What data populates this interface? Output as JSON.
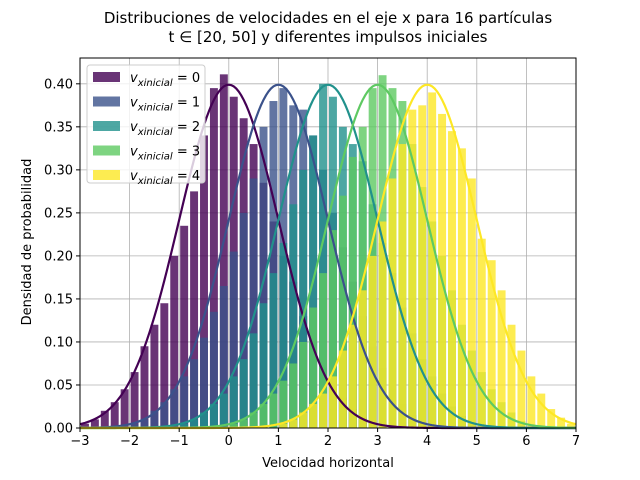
{
  "chart_data": {
    "type": "bar",
    "title_line1": "Distribuciones de velocidades en el eje x para 16 partículas",
    "title_line2": "t ∈ [20, 50] y diferentes impulsos iniciales",
    "xlabel": "Velocidad horizontal",
    "ylabel": "Densidad de probabilidad",
    "xlim": [
      -3,
      7
    ],
    "ylim": [
      0,
      0.43
    ],
    "xticks": [
      -3,
      -2,
      -1,
      0,
      1,
      2,
      3,
      4,
      5,
      6,
      7
    ],
    "xtick_labels": [
      "−3",
      "−2",
      "−1",
      "0",
      "1",
      "2",
      "3",
      "4",
      "5",
      "6",
      "7"
    ],
    "yticks": [
      0,
      0.05,
      0.1,
      0.15,
      0.2,
      0.25,
      0.3,
      0.35,
      0.4
    ],
    "ytick_labels": [
      "0.00",
      "0.05",
      "0.10",
      "0.15",
      "0.20",
      "0.25",
      "0.30",
      "0.35",
      "0.40"
    ],
    "grid": true,
    "legend_position": "top-left",
    "bin_width": 0.2,
    "curve_sigma": 1.0,
    "series": [
      {
        "name": "v_xinicial = 0",
        "legend_var": "v",
        "legend_sub": "xinicial",
        "legend_rest": " = 0",
        "mean": 0,
        "color": "#440154",
        "bin_centers": [
          -2.9,
          -2.7,
          -2.5,
          -2.3,
          -2.1,
          -1.9,
          -1.7,
          -1.5,
          -1.3,
          -1.1,
          -0.9,
          -0.7,
          -0.5,
          -0.3,
          -0.1,
          0.1,
          0.3,
          0.5,
          0.7,
          0.9,
          1.1,
          1.3,
          1.5,
          1.7,
          1.9,
          2.1,
          2.3,
          2.5,
          2.7,
          2.9
        ],
        "values": [
          0.005,
          0.01,
          0.02,
          0.03,
          0.045,
          0.065,
          0.095,
          0.12,
          0.145,
          0.2,
          0.235,
          0.275,
          0.34,
          0.395,
          0.411,
          0.385,
          0.36,
          0.33,
          0.285,
          0.24,
          0.2,
          0.17,
          0.13,
          0.1,
          0.07,
          0.05,
          0.035,
          0.022,
          0.012,
          0.006
        ]
      },
      {
        "name": "v_xinicial = 1",
        "legend_var": "v",
        "legend_sub": "xinicial",
        "legend_rest": " = 1",
        "mean": 1,
        "color": "#3b528b",
        "bin_centers": [
          -1.9,
          -1.7,
          -1.5,
          -1.3,
          -1.1,
          -0.9,
          -0.7,
          -0.5,
          -0.3,
          -0.1,
          0.1,
          0.3,
          0.5,
          0.7,
          0.9,
          1.1,
          1.3,
          1.5,
          1.7,
          1.9,
          2.1,
          2.3,
          2.5,
          2.7,
          2.9,
          3.1,
          3.3,
          3.5,
          3.7,
          3.9
        ],
        "values": [
          0.005,
          0.01,
          0.02,
          0.03,
          0.045,
          0.06,
          0.08,
          0.105,
          0.135,
          0.165,
          0.205,
          0.25,
          0.29,
          0.35,
          0.38,
          0.395,
          0.375,
          0.37,
          0.34,
          0.3,
          0.25,
          0.21,
          0.17,
          0.13,
          0.095,
          0.07,
          0.045,
          0.028,
          0.015,
          0.007
        ]
      },
      {
        "name": "v_xinicial = 2",
        "legend_var": "v",
        "legend_sub": "xinicial",
        "legend_rest": " = 2",
        "mean": 2,
        "color": "#21918c",
        "bin_centers": [
          -0.9,
          -0.7,
          -0.5,
          -0.3,
          -0.1,
          0.1,
          0.3,
          0.5,
          0.7,
          0.9,
          1.1,
          1.3,
          1.5,
          1.7,
          1.9,
          2.1,
          2.3,
          2.5,
          2.7,
          2.9,
          3.1,
          3.3,
          3.5,
          3.7,
          3.9,
          4.1,
          4.3,
          4.5,
          4.7,
          4.9
        ],
        "values": [
          0.005,
          0.01,
          0.018,
          0.028,
          0.04,
          0.06,
          0.08,
          0.11,
          0.145,
          0.18,
          0.215,
          0.26,
          0.3,
          0.34,
          0.4,
          0.385,
          0.35,
          0.33,
          0.31,
          0.26,
          0.215,
          0.18,
          0.14,
          0.11,
          0.08,
          0.06,
          0.04,
          0.025,
          0.014,
          0.006
        ]
      },
      {
        "name": "v_xinicial = 3",
        "legend_var": "v",
        "legend_sub": "xinicial",
        "legend_rest": " = 3",
        "mean": 3,
        "color": "#5ec962",
        "bin_centers": [
          0.1,
          0.3,
          0.5,
          0.7,
          0.9,
          1.1,
          1.3,
          1.5,
          1.7,
          1.9,
          2.1,
          2.3,
          2.5,
          2.7,
          2.9,
          3.1,
          3.3,
          3.5,
          3.7,
          3.9,
          4.1,
          4.3,
          4.5,
          4.7,
          4.9,
          5.1,
          5.3,
          5.5,
          5.7,
          5.9
        ],
        "values": [
          0.005,
          0.01,
          0.018,
          0.028,
          0.04,
          0.055,
          0.075,
          0.1,
          0.14,
          0.18,
          0.23,
          0.27,
          0.315,
          0.35,
          0.395,
          0.41,
          0.395,
          0.38,
          0.33,
          0.28,
          0.24,
          0.2,
          0.16,
          0.12,
          0.09,
          0.065,
          0.045,
          0.03,
          0.018,
          0.008
        ]
      },
      {
        "name": "v_xinicial = 4",
        "legend_var": "v",
        "legend_sub": "xinicial",
        "legend_rest": " = 4",
        "mean": 4,
        "color": "#fde725",
        "bin_centers": [
          1.1,
          1.3,
          1.5,
          1.7,
          1.9,
          2.1,
          2.3,
          2.5,
          2.7,
          2.9,
          3.1,
          3.3,
          3.5,
          3.7,
          3.9,
          4.1,
          4.3,
          4.5,
          4.7,
          4.9,
          5.1,
          5.3,
          5.5,
          5.7,
          5.9,
          6.1,
          6.3,
          6.5,
          6.7,
          6.9
        ],
        "values": [
          0.005,
          0.01,
          0.018,
          0.028,
          0.04,
          0.06,
          0.09,
          0.12,
          0.16,
          0.2,
          0.24,
          0.29,
          0.33,
          0.37,
          0.375,
          0.39,
          0.365,
          0.345,
          0.325,
          0.29,
          0.22,
          0.195,
          0.16,
          0.12,
          0.09,
          0.06,
          0.04,
          0.022,
          0.012,
          0.005
        ]
      }
    ]
  }
}
